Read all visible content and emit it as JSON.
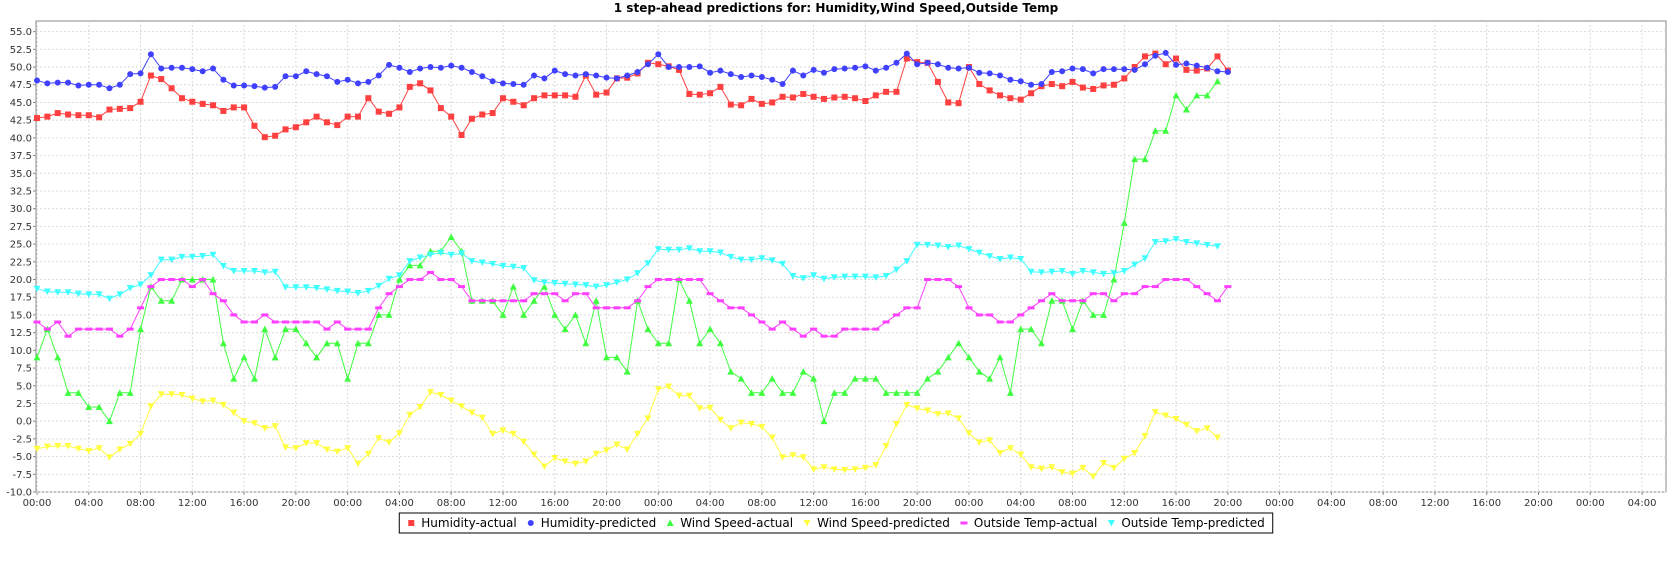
{
  "chart_data": {
    "type": "line",
    "title": "1 step-ahead predictions for: Humidity,Wind Speed,Outside Temp",
    "xlabel": "",
    "ylabel": "",
    "ylim": [
      -10,
      56.5
    ],
    "yticks": [
      -10.0,
      -7.5,
      -5.0,
      -2.5,
      0.0,
      2.5,
      5.0,
      7.5,
      10.0,
      12.5,
      15.0,
      17.5,
      20.0,
      22.5,
      25.0,
      27.5,
      30.0,
      32.5,
      35.0,
      37.5,
      40.0,
      42.5,
      45.0,
      47.5,
      50.0,
      52.5,
      55.0
    ],
    "ytick_labels": [
      "-10.0",
      "-7.5",
      "-5.0",
      "-2.5",
      "0.0",
      "2.5",
      "5.0",
      "7.5",
      "10.0",
      "12.5",
      "15.0",
      "17.5",
      "20.0",
      "22.5",
      "25.0",
      "27.5",
      "30.0",
      "32.5",
      "35.0",
      "37.5",
      "40.0",
      "42.5",
      "45.0",
      "47.5",
      "50.0",
      "52.5",
      "55.0"
    ],
    "xlim": [
      0,
      156
    ],
    "xticks": [
      0,
      5,
      10,
      15,
      20,
      25,
      30,
      35,
      40,
      45,
      50,
      55,
      60,
      65,
      70,
      75,
      80,
      85,
      90,
      95,
      100,
      105,
      110,
      115,
      120,
      125,
      130,
      135,
      140,
      145,
      150,
      155
    ],
    "xtick_labels": [
      "00:00",
      "04:00",
      "08:00",
      "12:00",
      "16:00",
      "20:00",
      "00:00",
      "04:00",
      "08:00",
      "12:00",
      "16:00",
      "20:00",
      "00:00",
      "04:00",
      "08:00",
      "12:00",
      "16:00",
      "20:00",
      "00:00",
      "04:00",
      "08:00",
      "12:00",
      "16:00",
      "20:00",
      "00:00",
      "04:00",
      "08:00",
      "12:00",
      "16:00",
      "20:00",
      "00:00",
      "04:00"
    ],
    "grid": true,
    "legend_position": "bottom",
    "series": [
      {
        "name": "Humidity-actual",
        "color": "#ff4040",
        "marker": "square",
        "values": [
          42.8,
          43.0,
          43.5,
          43.3,
          43.2,
          43.2,
          42.9,
          44.0,
          44.1,
          44.2,
          45.1,
          48.8,
          48.3,
          47.0,
          45.6,
          45.1,
          44.8,
          44.6,
          43.8,
          44.3,
          44.3,
          41.7,
          40.1,
          40.3,
          41.2,
          41.5,
          42.2,
          43.0,
          42.2,
          41.8,
          43.0,
          43.0,
          45.6,
          43.7,
          43.4,
          44.3,
          47.2,
          47.7,
          46.7,
          44.2,
          43.0,
          40.4,
          42.7,
          43.3,
          43.5,
          45.6,
          45.1,
          44.6,
          45.6,
          46.0,
          46.0,
          46.0,
          45.8,
          48.8,
          46.1,
          46.4,
          48.4,
          48.5,
          49.1,
          50.6,
          50.4,
          50.1,
          49.6,
          46.2,
          46.1,
          46.3,
          47.2,
          44.7,
          44.6,
          45.5,
          44.8,
          45.0,
          45.8,
          45.7,
          46.2,
          45.8,
          45.5,
          45.7,
          45.8,
          45.6,
          45.2,
          46.0,
          46.5,
          46.5,
          51.2,
          50.7,
          50.6,
          47.9,
          45.0,
          44.9,
          50.0,
          47.6,
          46.7,
          46.0,
          45.6,
          45.4,
          46.3,
          47.3,
          47.6,
          47.3,
          47.9,
          47.1,
          46.9,
          47.4,
          47.5,
          48.4,
          50.0,
          51.5,
          51.9,
          50.4,
          51.2,
          49.6,
          49.5,
          49.8,
          51.5,
          49.5
        ]
      },
      {
        "name": "Humidity-predicted",
        "color": "#4040ff",
        "marker": "circle",
        "values": [
          48.1,
          47.7,
          47.8,
          47.8,
          47.4,
          47.5,
          47.5,
          47.0,
          47.5,
          49.0,
          49.1,
          51.8,
          49.8,
          49.9,
          49.9,
          49.7,
          49.4,
          49.8,
          48.2,
          47.4,
          47.4,
          47.3,
          47.1,
          47.2,
          48.7,
          48.7,
          49.4,
          49.0,
          48.7,
          47.9,
          48.2,
          47.7,
          47.9,
          48.8,
          50.3,
          49.9,
          49.3,
          49.8,
          50.0,
          49.9,
          50.2,
          49.9,
          49.3,
          48.7,
          48.0,
          47.7,
          47.6,
          47.5,
          48.8,
          48.4,
          49.5,
          49.0,
          48.8,
          49.0,
          48.8,
          48.5,
          48.4,
          48.8,
          49.3,
          50.4,
          51.8,
          50.0,
          50.0,
          50.0,
          50.1,
          49.2,
          49.5,
          49.0,
          48.6,
          48.8,
          48.6,
          48.2,
          47.6,
          49.5,
          48.8,
          49.6,
          49.2,
          49.7,
          49.8,
          49.9,
          50.1,
          49.5,
          49.9,
          50.6,
          51.9,
          50.4,
          50.6,
          50.4,
          49.9,
          49.8,
          49.9,
          49.2,
          49.1,
          48.8,
          48.2,
          48.0,
          47.5,
          47.6,
          49.3,
          49.4,
          49.8,
          49.7,
          49.1,
          49.7,
          49.7,
          49.7,
          49.6,
          50.4,
          51.6,
          52.0,
          50.3,
          50.5,
          50.2,
          49.9,
          49.4,
          49.3
        ]
      },
      {
        "name": "Wind Speed-actual",
        "color": "#40ff40",
        "marker": "triangle-up",
        "values": [
          9.0,
          13.0,
          9.0,
          4.0,
          4.0,
          2.0,
          2.0,
          0.0,
          4.0,
          4.0,
          13.0,
          19.0,
          17.0,
          17.0,
          20.0,
          20.0,
          20.0,
          20.0,
          11.0,
          6.0,
          9.0,
          6.0,
          13.0,
          9.0,
          13.0,
          13.0,
          11.0,
          9.0,
          11.0,
          11.0,
          6.0,
          11.0,
          11.0,
          15.0,
          15.0,
          20.0,
          22.0,
          22.0,
          24.0,
          24.0,
          26.0,
          24.0,
          17.0,
          17.0,
          17.0,
          15.0,
          19.0,
          15.0,
          17.0,
          19.0,
          15.0,
          13.0,
          15.0,
          11.0,
          17.0,
          9.0,
          9.0,
          7.0,
          17.0,
          13.0,
          11.0,
          11.0,
          20.0,
          17.0,
          11.0,
          13.0,
          11.0,
          7.0,
          6.0,
          4.0,
          4.0,
          6.0,
          4.0,
          4.0,
          7.0,
          6.0,
          0.0,
          4.0,
          4.0,
          6.0,
          6.0,
          6.0,
          4.0,
          4.0,
          4.0,
          4.0,
          6.0,
          7.0,
          9.0,
          11.0,
          9.0,
          7.0,
          6.0,
          9.0,
          4.0,
          13.0,
          13.0,
          11.0,
          17.0,
          17.0,
          13.0,
          17.0,
          15.0,
          15.0,
          20.0,
          28.0,
          37.0,
          37.0,
          41.0,
          41.0,
          46.0,
          44.0,
          46.0,
          46.0,
          48.0
        ]
      },
      {
        "name": "Wind Speed-predicted",
        "color": "#ffff40",
        "marker": "triangle-down",
        "values": [
          -3.9,
          -3.6,
          -3.5,
          -3.5,
          -3.9,
          -4.2,
          -3.8,
          -5.1,
          -4.0,
          -3.2,
          -1.8,
          2.1,
          3.8,
          3.8,
          3.7,
          3.2,
          2.8,
          2.9,
          2.3,
          1.2,
          0.0,
          -0.3,
          -1.0,
          -0.7,
          -3.7,
          -3.8,
          -3.1,
          -3.1,
          -4.0,
          -4.3,
          -3.8,
          -6.0,
          -4.6,
          -2.4,
          -3.0,
          -1.7,
          0.9,
          2.0,
          4.1,
          3.7,
          2.9,
          2.1,
          1.2,
          0.5,
          -1.8,
          -1.3,
          -1.8,
          -2.9,
          -4.7,
          -6.4,
          -5.2,
          -5.7,
          -6.0,
          -5.7,
          -4.6,
          -4.1,
          -3.3,
          -4.0,
          -1.8,
          0.4,
          4.5,
          4.9,
          3.6,
          3.6,
          1.8,
          1.9,
          0.2,
          -1.0,
          -0.2,
          -0.4,
          -0.8,
          -2.3,
          -5.1,
          -4.8,
          -5.1,
          -6.8,
          -6.5,
          -6.8,
          -6.9,
          -6.8,
          -6.6,
          -6.2,
          -3.5,
          -0.4,
          2.3,
          1.8,
          1.5,
          1.0,
          1.1,
          0.4,
          -1.7,
          -3.0,
          -2.7,
          -4.5,
          -3.8,
          -4.7,
          -6.5,
          -6.7,
          -6.5,
          -7.2,
          -7.4,
          -6.6,
          -7.8,
          -5.9,
          -6.6,
          -5.3,
          -4.5,
          -2.1,
          1.3,
          0.8,
          0.3,
          -0.5,
          -1.4,
          -1.0,
          -2.3
        ]
      },
      {
        "name": "Outside Temp-actual",
        "color": "#ff40ff",
        "marker": "dash",
        "values": [
          14.0,
          13.0,
          14.0,
          12.0,
          13.0,
          13.0,
          13.0,
          13.0,
          12.0,
          13.0,
          16.0,
          19.0,
          20.0,
          20.0,
          20.0,
          19.0,
          20.0,
          18.0,
          17.0,
          15.0,
          14.0,
          14.0,
          15.0,
          14.0,
          14.0,
          14.0,
          14.0,
          14.0,
          13.0,
          14.0,
          13.0,
          13.0,
          13.0,
          16.0,
          18.0,
          19.0,
          20.0,
          20.0,
          21.0,
          20.0,
          20.0,
          19.0,
          17.0,
          17.0,
          17.0,
          17.0,
          17.0,
          17.0,
          18.0,
          18.0,
          18.0,
          17.0,
          18.0,
          18.0,
          16.0,
          16.0,
          16.0,
          16.0,
          17.0,
          19.0,
          20.0,
          20.0,
          20.0,
          20.0,
          20.0,
          18.0,
          17.0,
          16.0,
          16.0,
          15.0,
          14.0,
          13.0,
          14.0,
          13.0,
          12.0,
          13.0,
          12.0,
          12.0,
          13.0,
          13.0,
          13.0,
          13.0,
          14.0,
          15.0,
          16.0,
          16.0,
          20.0,
          20.0,
          20.0,
          19.0,
          16.0,
          15.0,
          15.0,
          14.0,
          14.0,
          15.0,
          16.0,
          17.0,
          18.0,
          17.0,
          17.0,
          17.0,
          18.0,
          18.0,
          17.0,
          18.0,
          18.0,
          19.0,
          19.0,
          20.0,
          20.0,
          20.0,
          19.0,
          18.0,
          17.0,
          19.0
        ]
      },
      {
        "name": "Outside Temp-predicted",
        "color": "#40ffff",
        "marker": "triangle-down",
        "values": [
          18.7,
          18.3,
          18.2,
          18.2,
          18.0,
          17.9,
          17.9,
          17.3,
          17.9,
          18.8,
          19.3,
          20.6,
          22.8,
          22.8,
          23.2,
          23.2,
          23.3,
          23.5,
          21.9,
          21.2,
          21.2,
          21.2,
          21.0,
          21.1,
          18.9,
          18.9,
          18.9,
          18.8,
          18.6,
          18.4,
          18.3,
          18.1,
          18.4,
          19.1,
          20.1,
          20.6,
          22.6,
          23.1,
          23.5,
          23.8,
          23.5,
          23.7,
          22.6,
          22.4,
          22.2,
          21.9,
          21.8,
          21.6,
          19.9,
          19.6,
          19.5,
          19.4,
          19.3,
          19.2,
          19.0,
          19.2,
          19.6,
          20.0,
          20.9,
          22.3,
          24.3,
          24.2,
          24.2,
          24.4,
          24.0,
          24.0,
          23.8,
          23.2,
          22.8,
          22.8,
          23.0,
          22.7,
          22.2,
          20.5,
          20.2,
          20.6,
          20.1,
          20.3,
          20.4,
          20.4,
          20.4,
          20.3,
          20.5,
          21.4,
          22.6,
          24.9,
          24.9,
          24.8,
          24.6,
          24.8,
          24.3,
          23.8,
          23.3,
          22.9,
          23.1,
          22.9,
          21.1,
          21.0,
          21.1,
          21.2,
          20.8,
          21.2,
          21.0,
          20.8,
          20.9,
          21.2,
          22.1,
          23.0,
          25.3,
          25.4,
          25.7,
          25.3,
          25.1,
          24.9,
          24.7
        ]
      }
    ]
  }
}
